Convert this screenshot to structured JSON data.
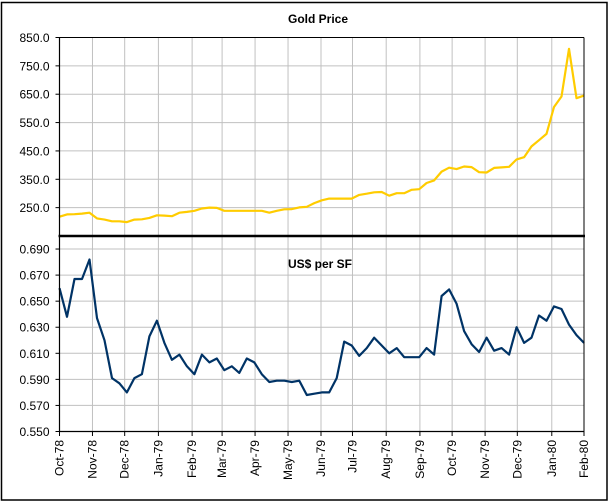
{
  "chart_data": [
    {
      "type": "line",
      "title": "Gold Price",
      "xlabel": "",
      "ylabel": "",
      "ylim": [
        150,
        850
      ],
      "yticks": [
        "250.0",
        "350.0",
        "450.0",
        "550.0",
        "650.0",
        "750.0",
        "850.0"
      ],
      "ytick_values": [
        250,
        350,
        450,
        550,
        650,
        750,
        850
      ],
      "grid": true,
      "color": "#FFCC00",
      "x_unit": "weeks since Oct-78",
      "values": [
        218,
        226,
        227,
        229,
        232,
        212,
        208,
        202,
        202,
        199,
        208,
        209,
        214,
        223,
        222,
        220,
        232,
        235,
        239,
        247,
        250,
        249,
        239,
        239,
        239,
        239,
        239,
        239,
        232,
        239,
        244,
        245,
        251,
        253,
        266,
        276,
        282,
        282,
        282,
        282,
        295,
        299,
        304,
        305,
        292,
        301,
        301,
        313,
        315,
        337,
        346,
        377,
        391,
        386,
        395,
        393,
        375,
        374,
        390,
        392,
        394,
        420,
        428,
        466,
        488,
        510,
        605,
        642,
        810,
        636,
        645
      ]
    },
    {
      "type": "line",
      "title": "US$ per SF",
      "xlabel": "",
      "ylabel": "",
      "ylim": [
        0.55,
        0.7
      ],
      "yticks": [
        "0.550",
        "0.570",
        "0.590",
        "0.610",
        "0.630",
        "0.650",
        "0.670",
        "0.690"
      ],
      "ytick_values": [
        0.55,
        0.57,
        0.59,
        0.61,
        0.63,
        0.65,
        0.67,
        0.69
      ],
      "grid": true,
      "color": "#003366",
      "x_unit": "weeks since Oct-78",
      "values": [
        0.66,
        0.638,
        0.667,
        0.667,
        0.682,
        0.637,
        0.62,
        0.591,
        0.587,
        0.58,
        0.591,
        0.594,
        0.623,
        0.635,
        0.618,
        0.605,
        0.609,
        0.6,
        0.594,
        0.609,
        0.603,
        0.606,
        0.597,
        0.6,
        0.595,
        0.606,
        0.603,
        0.594,
        0.588,
        0.589,
        0.589,
        0.588,
        0.589,
        0.578,
        0.579,
        0.58,
        0.58,
        0.591,
        0.619,
        0.616,
        0.608,
        0.614,
        0.622,
        0.616,
        0.61,
        0.614,
        0.607,
        0.607,
        0.607,
        0.614,
        0.609,
        0.654,
        0.659,
        0.648,
        0.627,
        0.617,
        0.611,
        0.622,
        0.612,
        0.614,
        0.609,
        0.63,
        0.618,
        0.622,
        0.639,
        0.635,
        0.646,
        0.644,
        0.632,
        0.624,
        0.618
      ]
    }
  ],
  "x_axis": {
    "categories": [
      "Oct-78",
      "Nov-78",
      "Dec-78",
      "Jan-79",
      "Feb-79",
      "Mar-79",
      "Apr-79",
      "May-79",
      "Jun-79",
      "Jul-79",
      "Aug-79",
      "Sep-79",
      "Oct-79",
      "Nov-79",
      "Dec-79",
      "Jan-80",
      "Feb-80"
    ],
    "category_week_index": [
      0,
      4.4,
      8.7,
      13.2,
      17.7,
      21.7,
      26.1,
      30.5,
      34.9,
      39.1,
      43.6,
      48.1,
      52.4,
      56.8,
      61.1,
      65.7,
      70
    ]
  }
}
